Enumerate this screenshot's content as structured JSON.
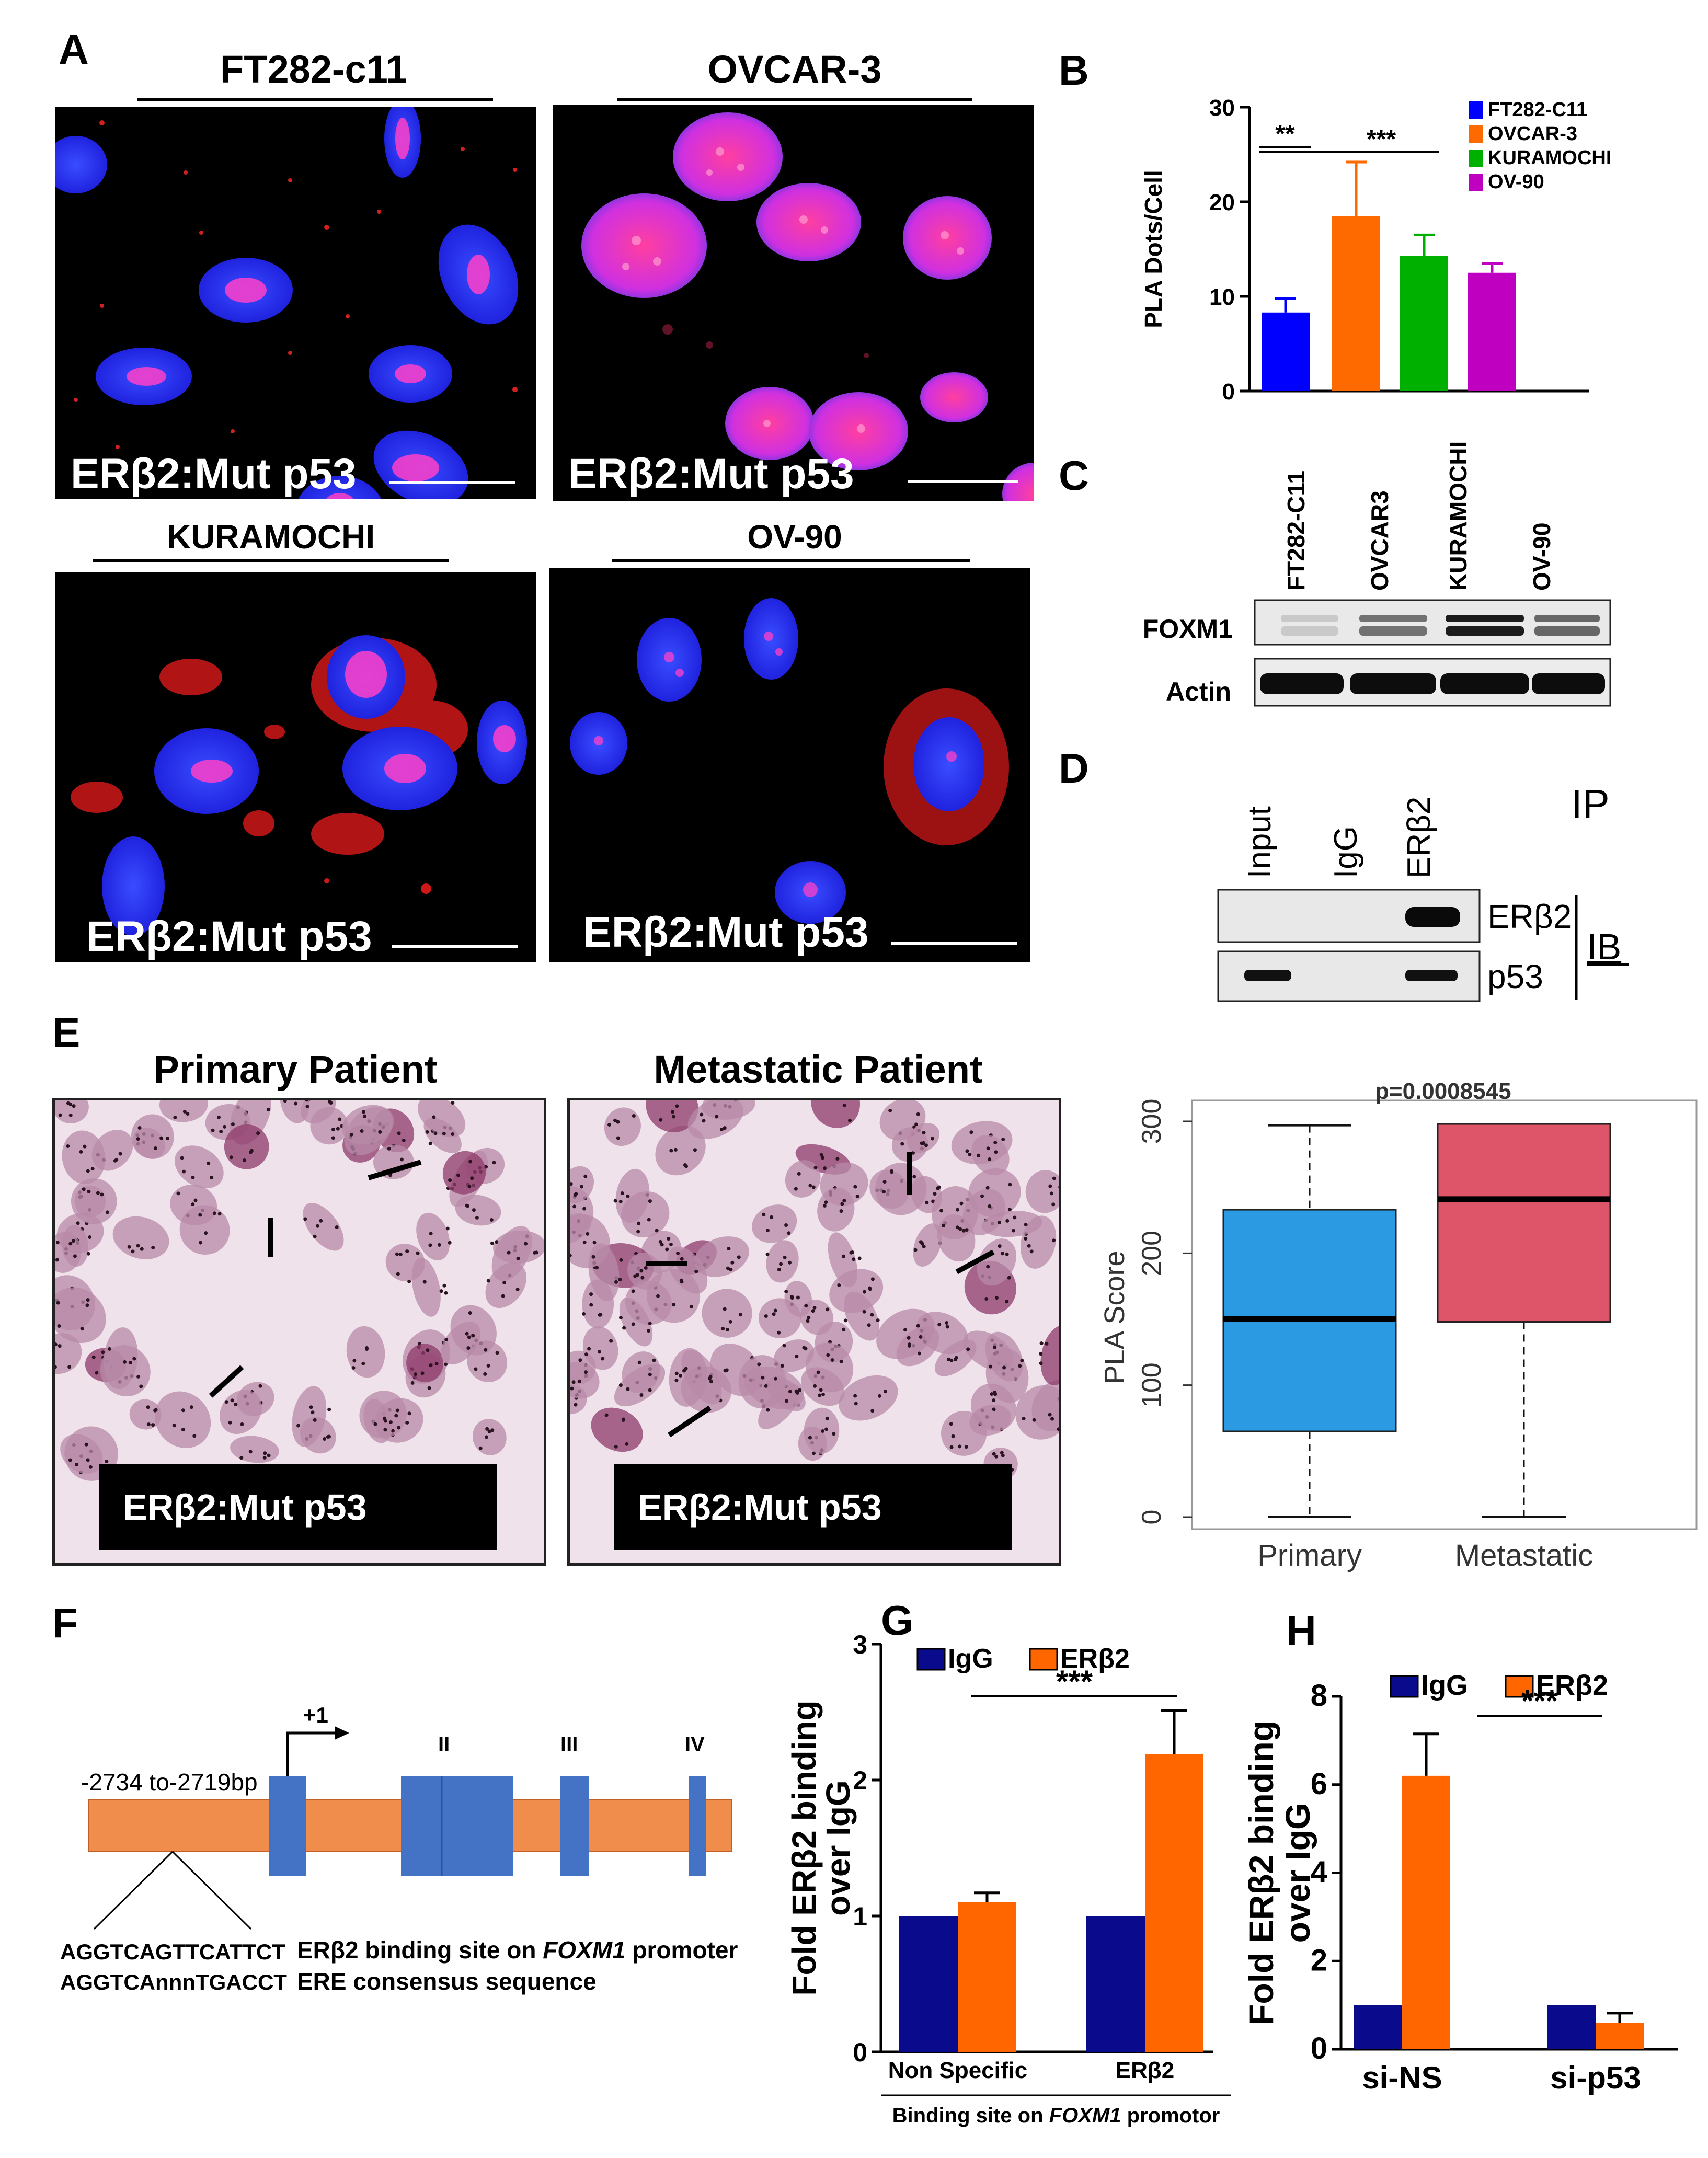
{
  "panels": {
    "A": {
      "letter": "A",
      "images": [
        {
          "title": "FT282-c11",
          "caption": "ERβ2:Mut p53"
        },
        {
          "title": "OVCAR-3",
          "caption": "ERβ2:Mut p53"
        },
        {
          "title": "KURAMOCHI",
          "caption": "ERβ2:Mut p53"
        },
        {
          "title": "OV-90",
          "caption": "ERβ2:Mut p53"
        }
      ]
    },
    "B": {
      "letter": "B"
    },
    "C": {
      "letter": "C",
      "lanes": [
        "FT282-C11",
        "OVCAR3",
        "KURAMOCHI",
        "OV-90"
      ],
      "rows": [
        "FOXM1",
        "Actin"
      ]
    },
    "D": {
      "letter": "D",
      "ip_label": "IP",
      "ib_label": "IB",
      "lanes": [
        "Input",
        "IgG",
        "ERβ2"
      ],
      "rows": [
        "ERβ2",
        "p53"
      ]
    },
    "E": {
      "letter": "E",
      "images": [
        {
          "title": "Primary Patient",
          "caption": "ERβ2:Mut p53"
        },
        {
          "title": "Metastatic Patient",
          "caption": "ERβ2:Mut p53"
        }
      ]
    },
    "F": {
      "letter": "F",
      "tss_label": "+1",
      "region_label": "-2734 to-2719bp",
      "exon_labels": [
        "II",
        "III",
        "IV"
      ],
      "seq_site": "AGGTCAGTTCATTCT",
      "seq_site_desc_a": "ERβ2 binding site on ",
      "seq_site_desc_gene": "FOXM1",
      "seq_site_desc_b": " promoter",
      "seq_consensus": "AGGTCAnnnTGACCT",
      "seq_consensus_desc": "ERE consensus sequence"
    },
    "G": {
      "letter": "G"
    },
    "H": {
      "letter": "H"
    }
  },
  "chart_data": [
    {
      "id": "B",
      "type": "bar",
      "title": "",
      "xlabel": "",
      "ylabel": "PLA Dots/Cell",
      "ylim": [
        0,
        30
      ],
      "yticks": [
        0,
        10,
        20,
        30
      ],
      "categories": [
        "FT282-C11",
        "OVCAR-3",
        "KURAMOCHI",
        "OV-90"
      ],
      "values": [
        8.3,
        18.5,
        14.3,
        12.5
      ],
      "errors": [
        1.5,
        5.7,
        2.2,
        1.0
      ],
      "colors": [
        "#0000ff",
        "#ff6a00",
        "#00b000",
        "#c000c0"
      ],
      "legend": [
        "FT282-C11",
        "OVCAR-3",
        "KURAMOCHI",
        "OV-90"
      ],
      "legend_position": "top-right",
      "significance": [
        "**",
        "***"
      ]
    },
    {
      "id": "E",
      "type": "boxplot",
      "title": "p=0.0008545",
      "xlabel": "",
      "ylabel": "PLA Score",
      "ylim": [
        0,
        300
      ],
      "yticks": [
        0,
        100,
        200,
        300
      ],
      "categories": [
        "Primary",
        "Metastatic"
      ],
      "boxes": [
        {
          "min": 0,
          "q1": 65,
          "median": 150,
          "q3": 233,
          "max": 297,
          "color": "#2b9ae3"
        },
        {
          "min": 0,
          "q1": 148,
          "median": 241,
          "q3": 298,
          "max": 298,
          "color": "#de5469"
        }
      ]
    },
    {
      "id": "G",
      "type": "bar",
      "title": "",
      "xlabel": "Binding site on FOXM1 promotor",
      "ylabel": "Fold ERβ2 binding over IgG",
      "ylim": [
        0,
        3
      ],
      "yticks": [
        0,
        1,
        2,
        3
      ],
      "categories": [
        "Non Specific",
        "ERβ2"
      ],
      "series": [
        {
          "name": "IgG",
          "values": [
            1.0,
            1.0
          ],
          "errors": [
            0,
            0
          ],
          "color": "#0a0a8c"
        },
        {
          "name": "ERβ2",
          "values": [
            1.1,
            2.19
          ],
          "errors": [
            0.07,
            0.32
          ],
          "color": "#ff6600"
        }
      ],
      "legend_position": "top",
      "significance": [
        "***"
      ]
    },
    {
      "id": "H",
      "type": "bar",
      "title": "",
      "xlabel": "",
      "ylabel": "Fold ERβ2 binding over IgG",
      "ylim": [
        0,
        8
      ],
      "yticks": [
        0,
        2,
        4,
        6,
        8
      ],
      "categories": [
        "si-NS",
        "si-p53"
      ],
      "series": [
        {
          "name": "IgG",
          "values": [
            1.0,
            1.0
          ],
          "errors": [
            0,
            0
          ],
          "color": "#0a0a8c"
        },
        {
          "name": "ERβ2",
          "values": [
            6.2,
            0.6
          ],
          "errors": [
            0.95,
            0.22
          ],
          "color": "#ff6600"
        }
      ],
      "legend_position": "top",
      "significance": [
        "***"
      ]
    }
  ]
}
